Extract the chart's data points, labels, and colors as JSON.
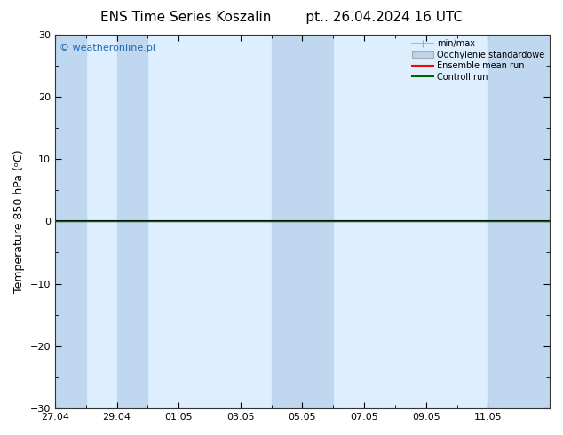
{
  "title_left": "ENS Time Series Koszalin",
  "title_right": "pt.. 26.04.2024 16 UTC",
  "ylabel": "Temperature 850 hPa (ᵒC)",
  "ylim": [
    -30,
    30
  ],
  "yticks": [
    -30,
    -20,
    -10,
    0,
    10,
    20,
    30
  ],
  "xlabel_dates": [
    "27.04",
    "29.04",
    "01.05",
    "03.05",
    "05.05",
    "07.05",
    "09.05",
    "11.05"
  ],
  "x_tick_positions": [
    0,
    2,
    4,
    6,
    8,
    10,
    12,
    14
  ],
  "background_color": "#ffffff",
  "plot_bg_color": "#ddeeff",
  "shaded_band_color": "#c0d8ef",
  "zero_line_color": "#000000",
  "green_line_color": "#006400",
  "watermark_text": "© weatheronline.pl",
  "watermark_color": "#1a6bb5",
  "legend_entries": [
    "min/max",
    "Odchylenie standardowe",
    "Ensemble mean run",
    "Controll run"
  ],
  "legend_minmax_color": "#aaaaaa",
  "legend_std_color": "#c0d4e8",
  "legend_ens_color": "#ff0000",
  "legend_ctrl_color": "#006400",
  "title_fontsize": 11,
  "tick_fontsize": 8,
  "ylabel_fontsize": 9,
  "total_days": 16.0,
  "shaded_bands": [
    [
      0,
      1
    ],
    [
      2,
      3
    ],
    [
      7,
      9
    ],
    [
      14,
      16
    ]
  ]
}
